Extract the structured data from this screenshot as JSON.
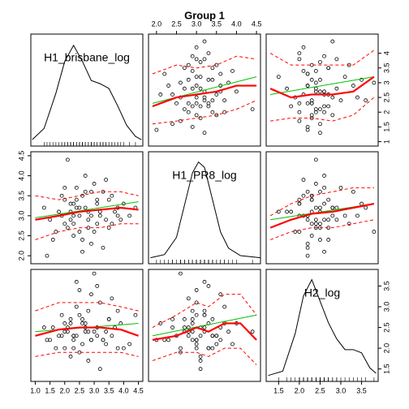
{
  "chart_data": {
    "type": "scatter_matrix",
    "title": "Group 1",
    "linear_color": "#00c000",
    "smooth_color": "#ff0000",
    "point_color": "#000000",
    "variables": [
      {
        "name": "H1_brisbane_log",
        "lim": [
          0.85,
          4.65
        ],
        "density": {
          "x": [
            0.9,
            1.3,
            1.7,
            2.0,
            2.3,
            2.6,
            2.9,
            3.2,
            3.5,
            3.8,
            4.1,
            4.4,
            4.6
          ],
          "y": [
            0.01,
            0.08,
            0.3,
            0.5,
            0.6,
            0.5,
            0.38,
            0.36,
            0.33,
            0.22,
            0.1,
            0.03,
            0.01
          ],
          "ylim": [
            0,
            0.64
          ]
        }
      },
      {
        "name": "H1_PR8_log",
        "lim": [
          1.8,
          4.6
        ],
        "density": {
          "x": [
            1.85,
            2.2,
            2.5,
            2.7,
            2.9,
            3.05,
            3.2,
            3.4,
            3.6,
            3.8,
            4.1,
            4.6
          ],
          "y": [
            0.01,
            0.04,
            0.2,
            0.5,
            0.8,
            0.9,
            0.85,
            0.55,
            0.25,
            0.1,
            0.03,
            0.01
          ],
          "ylim": [
            0,
            0.95
          ]
        }
      },
      {
        "name": "H2_log",
        "lim": [
          1.2,
          3.9
        ],
        "density": {
          "x": [
            1.25,
            1.6,
            1.9,
            2.1,
            2.3,
            2.5,
            2.7,
            2.9,
            3.1,
            3.3,
            3.5,
            3.7,
            3.85
          ],
          "y": [
            0.01,
            0.05,
            0.4,
            0.75,
            0.9,
            0.7,
            0.5,
            0.35,
            0.25,
            0.25,
            0.22,
            0.08,
            0.03
          ],
          "ylim": [
            0,
            0.95
          ]
        }
      }
    ],
    "observations": [
      [
        2.3,
        3.0,
        2.2
      ],
      [
        3.1,
        2.8,
        2.5
      ],
      [
        2.0,
        3.4,
        2.0
      ],
      [
        3.8,
        3.2,
        2.9
      ],
      [
        2.5,
        2.6,
        1.9
      ],
      [
        1.8,
        3.1,
        2.3
      ],
      [
        2.9,
        3.6,
        3.3
      ],
      [
        3.4,
        2.9,
        2.4
      ],
      [
        2.2,
        3.3,
        2.6
      ],
      [
        4.2,
        3.0,
        2.1
      ],
      [
        2.6,
        2.4,
        2.7
      ],
      [
        1.5,
        2.9,
        2.2
      ],
      [
        3.0,
        3.8,
        2.4
      ],
      [
        2.4,
        3.2,
        3.6
      ],
      [
        3.6,
        3.5,
        2.3
      ],
      [
        2.1,
        2.7,
        2.5
      ],
      [
        2.8,
        3.1,
        1.7
      ],
      [
        3.3,
        2.2,
        2.2
      ],
      [
        1.9,
        3.0,
        2.8
      ],
      [
        2.7,
        4.0,
        2.6
      ],
      [
        4.0,
        3.3,
        2.0
      ],
      [
        2.3,
        2.5,
        2.3
      ],
      [
        3.2,
        3.0,
        3.1
      ],
      [
        2.0,
        2.8,
        2.4
      ],
      [
        2.6,
        3.5,
        2.1
      ],
      [
        3.5,
        2.7,
        2.7
      ],
      [
        1.3,
        3.2,
        2.5
      ],
      [
        2.9,
        2.3,
        2.2
      ],
      [
        2.4,
        3.7,
        3.0
      ],
      [
        3.9,
        2.9,
        2.6
      ],
      [
        2.2,
        3.1,
        1.8
      ],
      [
        3.1,
        3.4,
        2.3
      ],
      [
        2.5,
        3.0,
        3.4
      ],
      [
        1.7,
        2.6,
        2.0
      ],
      [
        3.7,
        3.1,
        2.5
      ],
      [
        2.8,
        2.9,
        2.9
      ],
      [
        2.1,
        4.4,
        2.4
      ],
      [
        3.3,
        3.6,
        2.2
      ],
      [
        2.6,
        2.1,
        2.6
      ],
      [
        4.4,
        3.2,
        2.8
      ],
      [
        2.3,
        3.3,
        2.0
      ],
      [
        3.0,
        2.6,
        3.8
      ],
      [
        1.9,
        3.5,
        2.3
      ],
      [
        2.7,
        3.2,
        2.4
      ],
      [
        3.4,
        3.9,
        2.1
      ],
      [
        2.2,
        2.9,
        2.7
      ],
      [
        2.9,
        3.0,
        2.2
      ],
      [
        1.6,
        2.4,
        2.5
      ],
      [
        3.6,
        2.8,
        3.2
      ],
      [
        2.4,
        3.4,
        2.3
      ],
      [
        3.2,
        3.1,
        1.5
      ],
      [
        2.0,
        3.7,
        2.6
      ],
      [
        2.8,
        2.7,
        2.4
      ],
      [
        3.8,
        3.0,
        2.0
      ],
      [
        2.5,
        3.2,
        2.8
      ],
      [
        1.4,
        2.0,
        2.2
      ],
      [
        3.1,
        3.3,
        3.5
      ],
      [
        2.3,
        2.8,
        2.3
      ],
      [
        2.7,
        3.6,
        2.5
      ],
      [
        3.5,
        3.4,
        2.7
      ]
    ],
    "panels": [
      {
        "row": 0,
        "col": 1,
        "linear": {
          "x": [
            1.9,
            4.5
          ],
          "y": [
            2.3,
            3.2
          ]
        },
        "smooth": {
          "x": [
            1.9,
            2.5,
            3.0,
            3.5,
            4.0,
            4.5
          ],
          "y": [
            2.2,
            2.5,
            2.6,
            2.7,
            2.9,
            2.9
          ]
        },
        "upper": {
          "x": [
            1.9,
            2.5,
            3.0,
            3.5,
            4.0,
            4.5
          ],
          "y": [
            3.3,
            3.6,
            3.5,
            3.6,
            3.9,
            3.8
          ]
        },
        "lower": {
          "x": [
            1.9,
            2.5,
            3.0,
            3.5,
            4.0,
            4.5
          ],
          "y": [
            1.6,
            1.7,
            1.8,
            1.9,
            2.1,
            2.4
          ]
        }
      },
      {
        "row": 0,
        "col": 2,
        "linear": {
          "x": [
            1.3,
            3.8
          ],
          "y": [
            2.6,
            3.2
          ]
        },
        "smooth": {
          "x": [
            1.3,
            1.8,
            2.3,
            2.8,
            3.3,
            3.8
          ],
          "y": [
            2.8,
            2.5,
            2.6,
            2.6,
            2.7,
            3.2
          ]
        },
        "upper": {
          "x": [
            1.3,
            1.8,
            2.3,
            2.8,
            3.3,
            3.8
          ],
          "y": [
            4.0,
            3.6,
            3.6,
            3.6,
            3.6,
            4.1
          ]
        },
        "lower": {
          "x": [
            1.3,
            1.8,
            2.3,
            2.8,
            3.3,
            3.8
          ],
          "y": [
            1.7,
            1.8,
            1.8,
            1.7,
            1.9,
            2.5
          ]
        }
      },
      {
        "row": 1,
        "col": 0,
        "linear": {
          "x": [
            1.0,
            4.5
          ],
          "y": [
            2.95,
            3.35
          ]
        },
        "smooth": {
          "x": [
            1.0,
            1.8,
            2.5,
            3.2,
            3.9,
            4.5
          ],
          "y": [
            2.9,
            3.0,
            3.1,
            3.15,
            3.2,
            3.15
          ]
        },
        "upper": {
          "x": [
            1.0,
            1.8,
            2.5,
            3.2,
            3.9,
            4.5
          ],
          "y": [
            3.5,
            3.4,
            3.5,
            3.6,
            3.6,
            3.5
          ]
        },
        "lower": {
          "x": [
            1.0,
            1.8,
            2.5,
            3.2,
            3.9,
            4.5
          ],
          "y": [
            2.4,
            2.6,
            2.7,
            2.7,
            2.8,
            2.8
          ]
        }
      },
      {
        "row": 1,
        "col": 2,
        "linear": {
          "x": [
            1.3,
            3.8
          ],
          "y": [
            2.9,
            3.3
          ]
        },
        "smooth": {
          "x": [
            1.3,
            1.8,
            2.3,
            2.8,
            3.3,
            3.8
          ],
          "y": [
            2.7,
            2.9,
            3.05,
            3.1,
            3.2,
            3.3
          ]
        },
        "upper": {
          "x": [
            1.3,
            1.8,
            2.3,
            2.8,
            3.3,
            3.8
          ],
          "y": [
            3.0,
            3.3,
            3.5,
            3.6,
            3.7,
            3.7
          ]
        },
        "lower": {
          "x": [
            1.3,
            1.8,
            2.3,
            2.8,
            3.3,
            3.8
          ],
          "y": [
            2.4,
            2.6,
            2.7,
            2.7,
            2.8,
            2.9
          ]
        }
      },
      {
        "row": 2,
        "col": 0,
        "linear": {
          "x": [
            1.0,
            4.5
          ],
          "y": [
            2.4,
            2.6
          ]
        },
        "smooth": {
          "x": [
            1.0,
            1.8,
            2.5,
            3.2,
            3.9,
            4.5
          ],
          "y": [
            2.3,
            2.45,
            2.5,
            2.5,
            2.45,
            2.3
          ]
        },
        "upper": {
          "x": [
            1.0,
            1.8,
            2.5,
            3.2,
            3.9,
            4.5
          ],
          "y": [
            2.9,
            3.1,
            3.1,
            3.1,
            3.0,
            2.9
          ]
        },
        "lower": {
          "x": [
            1.0,
            1.8,
            2.5,
            3.2,
            3.9,
            4.5
          ],
          "y": [
            1.8,
            1.9,
            1.9,
            1.9,
            1.9,
            1.8
          ]
        }
      },
      {
        "row": 2,
        "col": 1,
        "linear": {
          "x": [
            1.9,
            4.5
          ],
          "y": [
            2.3,
            2.8
          ]
        },
        "smooth": {
          "x": [
            1.9,
            2.5,
            3.0,
            3.3,
            3.7,
            4.1,
            4.5
          ],
          "y": [
            2.2,
            2.3,
            2.5,
            2.4,
            2.6,
            2.6,
            2.2
          ]
        },
        "upper": {
          "x": [
            1.9,
            2.5,
            3.0,
            3.3,
            3.7,
            4.1,
            4.5
          ],
          "y": [
            2.5,
            2.8,
            3.1,
            3.0,
            3.3,
            3.3,
            2.8
          ]
        },
        "lower": {
          "x": [
            1.9,
            2.5,
            3.0,
            3.3,
            3.7,
            4.1,
            4.5
          ],
          "y": [
            1.7,
            1.9,
            1.9,
            1.8,
            2.0,
            2.0,
            1.6
          ]
        }
      }
    ],
    "axes": [
      {
        "side": "bottom",
        "index": 0,
        "ticks": [
          {
            "value": 1,
            "label": "1.0"
          },
          1.5,
          {
            "value": 2,
            "label": "2.0"
          },
          2.5,
          {
            "value": 3,
            "label": "3.0"
          },
          3.5,
          {
            "value": 4,
            "label": "4.0"
          },
          4.5
        ]
      },
      {
        "side": "top",
        "index": 1,
        "ticks": [
          {
            "value": 2,
            "label": "2.0"
          },
          2.5,
          {
            "value": 3,
            "label": "3.0"
          },
          3.5,
          {
            "value": 4,
            "label": "4.0"
          },
          4.5
        ]
      },
      {
        "side": "bottom",
        "index": 2,
        "ticks": [
          1.5,
          {
            "value": 2,
            "label": "2.0"
          },
          2.5,
          {
            "value": 3,
            "label": "3.0"
          },
          3.5
        ]
      },
      {
        "side": "right",
        "index": 0,
        "ticks": [
          1,
          1.5,
          2,
          2.5,
          3,
          3.5,
          4
        ]
      },
      {
        "side": "left",
        "index": 1,
        "ticks": [
          {
            "value": 2,
            "label": "2.0"
          },
          2.5,
          {
            "value": 3,
            "label": "3.0"
          },
          3.5,
          {
            "value": 4,
            "label": "4.0"
          },
          4.5
        ]
      },
      {
        "side": "right",
        "index": 2,
        "ticks": [
          1.5,
          {
            "value": 2,
            "label": "2.0"
          },
          2.5,
          {
            "value": 3,
            "label": "3.0"
          },
          3.5
        ]
      }
    ]
  }
}
